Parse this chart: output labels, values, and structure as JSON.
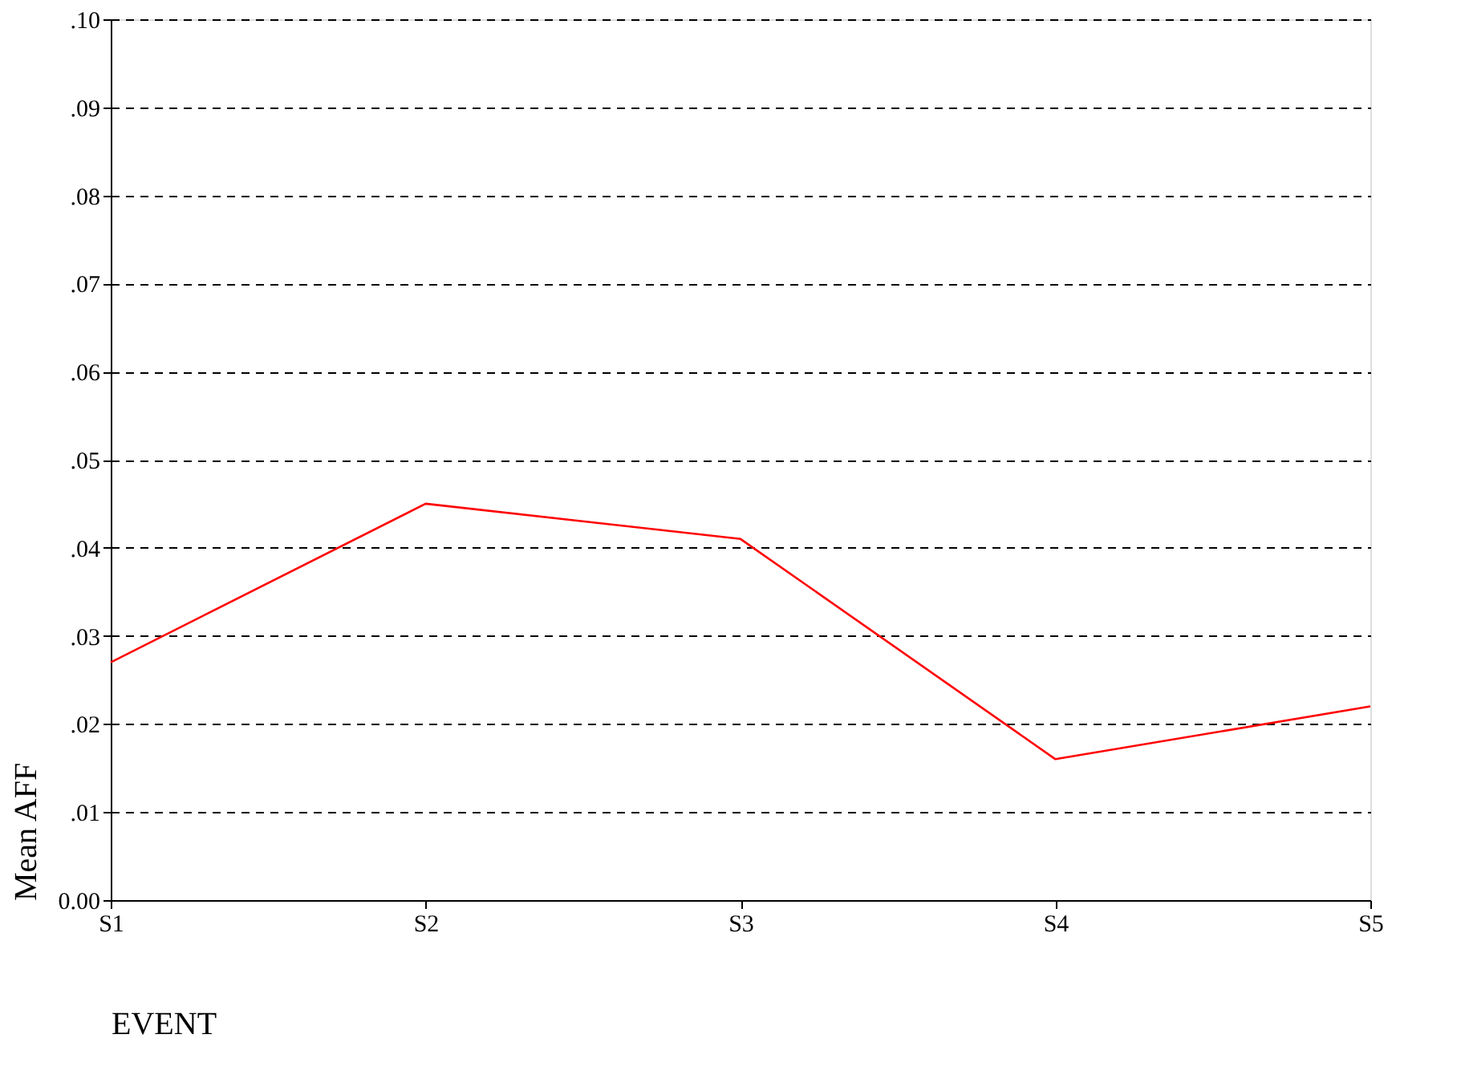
{
  "chart_data": {
    "type": "line",
    "xlabel": "EVENT",
    "ylabel": "Mean AFF",
    "categories": [
      "S1",
      "S2",
      "S3",
      "S4",
      "S5"
    ],
    "series": [
      {
        "color": "#ff0000",
        "values": [
          0.027,
          0.045,
          0.041,
          0.016,
          0.022
        ]
      }
    ],
    "ylim": [
      0,
      0.1
    ],
    "yticks": [
      {
        "value": 0,
        "label": "0.00"
      },
      {
        "value": 0.01,
        "label": ".01"
      },
      {
        "value": 0.02,
        "label": ".02"
      },
      {
        "value": 0.03,
        "label": ".03"
      },
      {
        "value": 0.04,
        "label": ".04"
      },
      {
        "value": 0.05,
        "label": ".05"
      },
      {
        "value": 0.06,
        "label": ".06"
      },
      {
        "value": 0.07,
        "label": ".07"
      },
      {
        "value": 0.08,
        "label": ".08"
      },
      {
        "value": 0.09,
        "label": ".09"
      },
      {
        "value": 0.1,
        "label": ".10"
      }
    ],
    "grid": "y",
    "marker": "none",
    "line_style": "solid"
  }
}
